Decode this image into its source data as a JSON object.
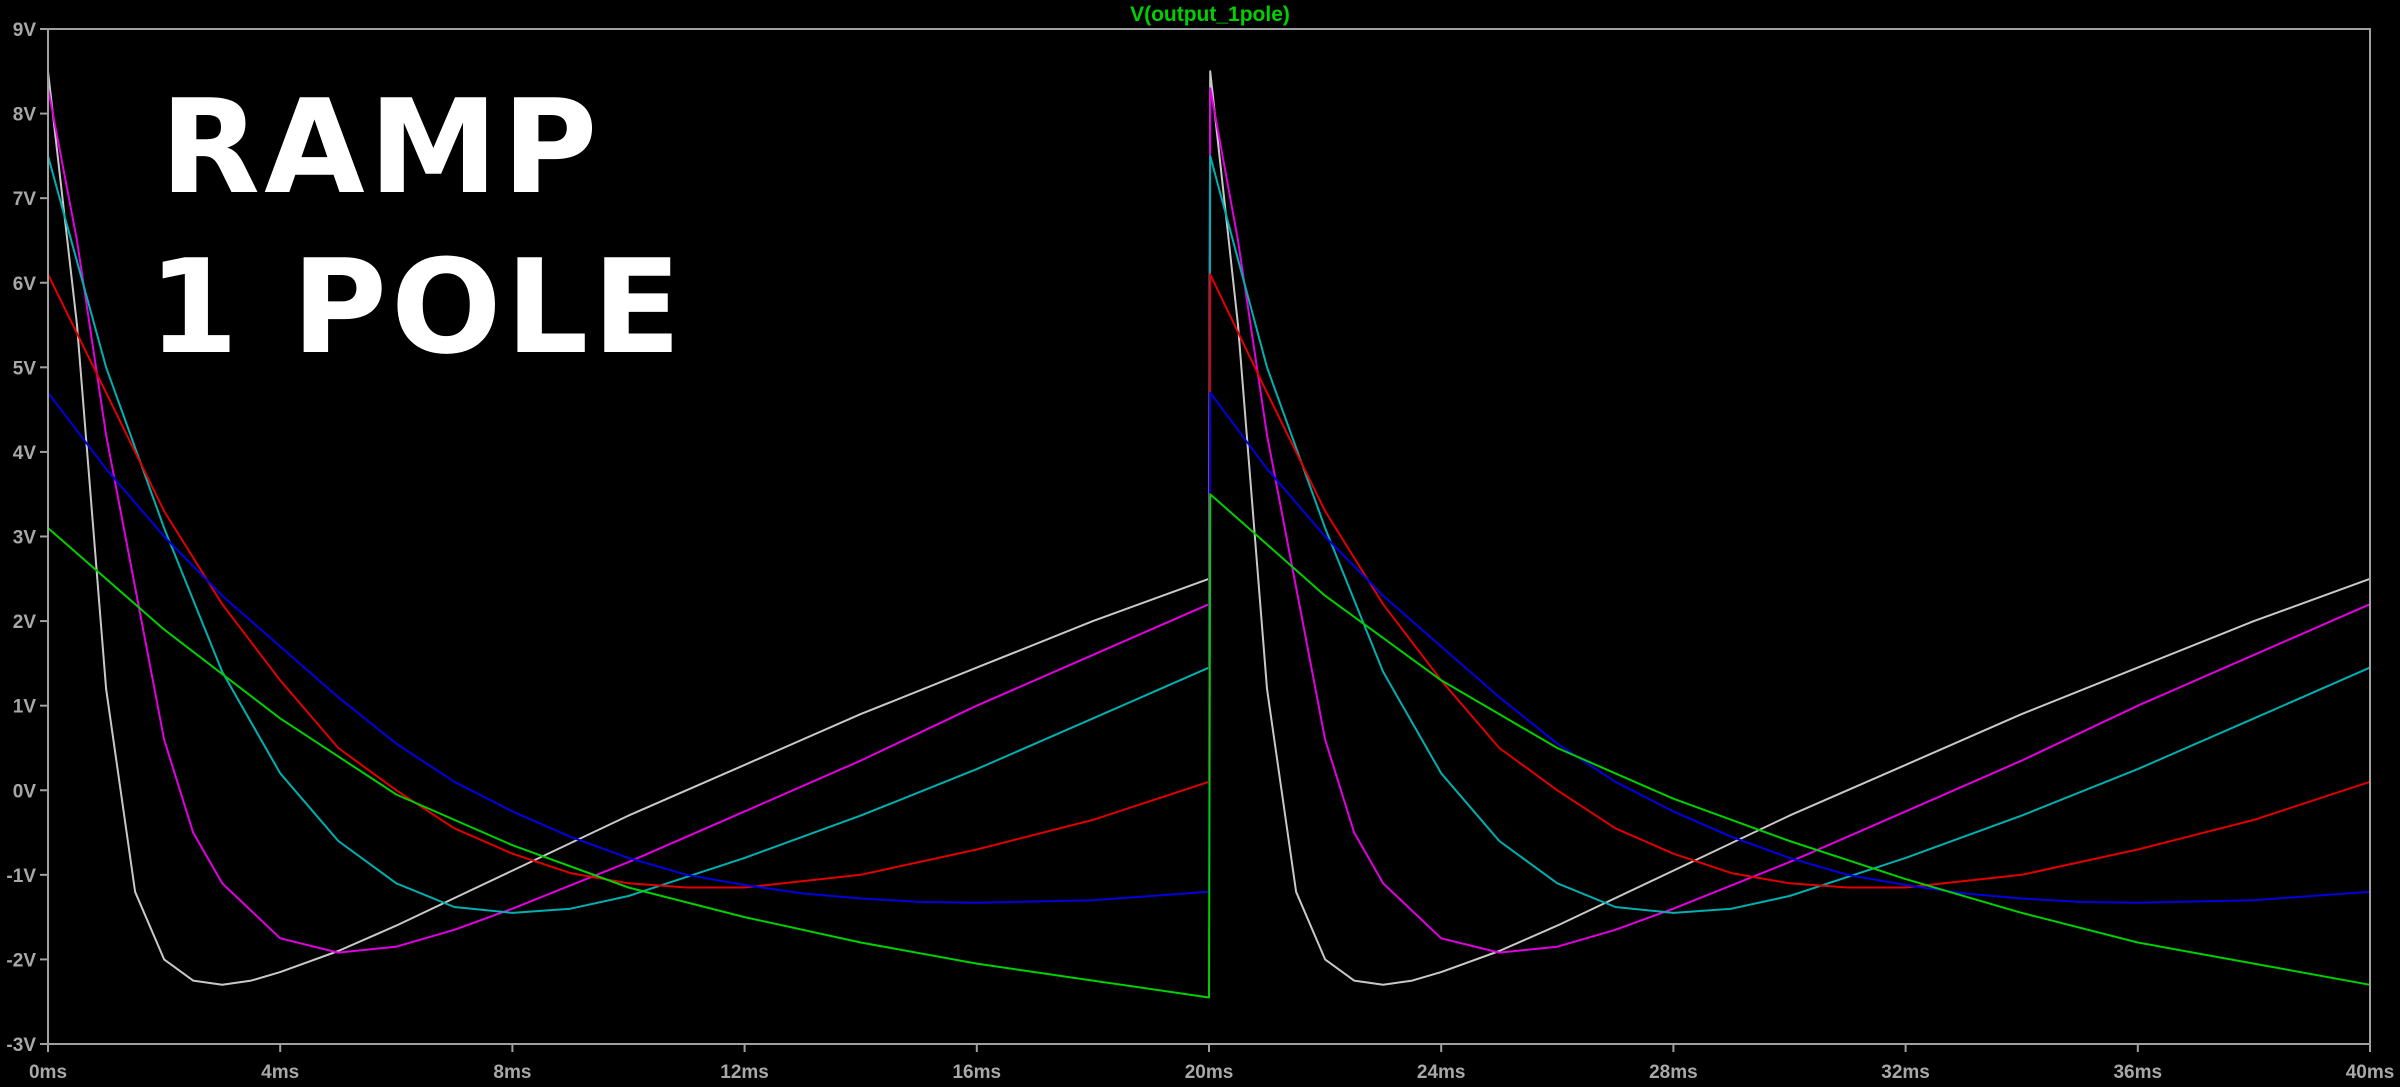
{
  "window": {
    "trace_title": "V(output_1pole)",
    "overlay_line1": "RAMP",
    "overlay_line2": "1 POLE"
  },
  "chart_data": {
    "type": "line",
    "title": "V(output_1pole)",
    "xlabel": "",
    "ylabel": "",
    "xlim": [
      0,
      40
    ],
    "ylim": [
      -3,
      9
    ],
    "x_unit": "ms",
    "y_unit": "V",
    "grid": false,
    "x_ticks": [
      "0ms",
      "4ms",
      "8ms",
      "12ms",
      "16ms",
      "20ms",
      "24ms",
      "28ms",
      "32ms",
      "36ms",
      "40ms"
    ],
    "y_ticks": [
      "-3V",
      "-2V",
      "-1V",
      "0V",
      "1V",
      "2V",
      "3V",
      "4V",
      "5V",
      "6V",
      "7V",
      "8V",
      "9V"
    ],
    "colors": {
      "background": "#000000",
      "axis": "#a0a0a0",
      "title": "#00d000"
    },
    "series": [
      {
        "color": "#c8c8c8",
        "x": [
          0,
          0.5,
          1,
          1.5,
          2,
          2.5,
          3,
          3.5,
          4,
          5,
          6,
          8,
          10,
          12,
          14,
          16,
          18,
          20,
          20.02,
          20.5,
          21,
          21.5,
          22,
          22.5,
          23,
          23.5,
          24,
          25,
          26,
          28,
          30,
          32,
          34,
          36,
          38,
          40
        ],
        "y": [
          8.5,
          5.5,
          1.2,
          -1.2,
          -2.0,
          -2.25,
          -2.3,
          -2.25,
          -2.15,
          -1.9,
          -1.6,
          -0.95,
          -0.3,
          0.3,
          0.9,
          1.45,
          2.0,
          2.5,
          8.5,
          5.5,
          1.2,
          -1.2,
          -2.0,
          -2.25,
          -2.3,
          -2.25,
          -2.15,
          -1.9,
          -1.6,
          -0.95,
          -0.3,
          0.3,
          0.9,
          1.45,
          2.0,
          2.5
        ]
      },
      {
        "color": "#e000e0",
        "x": [
          0,
          0.5,
          1,
          1.5,
          2,
          2.5,
          3,
          4,
          5,
          6,
          7,
          8,
          10,
          12,
          14,
          16,
          18,
          20,
          20.02,
          20.5,
          21,
          21.5,
          22,
          22.5,
          23,
          24,
          25,
          26,
          27,
          28,
          30,
          32,
          34,
          36,
          38,
          40
        ],
        "y": [
          8.3,
          6.5,
          4.2,
          2.4,
          0.6,
          -0.5,
          -1.1,
          -1.75,
          -1.92,
          -1.85,
          -1.65,
          -1.4,
          -0.85,
          -0.25,
          0.35,
          1.0,
          1.6,
          2.2,
          8.3,
          6.5,
          4.2,
          2.4,
          0.6,
          -0.5,
          -1.1,
          -1.75,
          -1.92,
          -1.85,
          -1.65,
          -1.4,
          -0.85,
          -0.25,
          0.35,
          1.0,
          1.6,
          2.2
        ]
      },
      {
        "color": "#00b0b0",
        "x": [
          0,
          1,
          2,
          3,
          4,
          5,
          6,
          7,
          8,
          9,
          10,
          12,
          14,
          16,
          18,
          20,
          20.02,
          21,
          22,
          23,
          24,
          25,
          26,
          27,
          28,
          29,
          30,
          32,
          34,
          36,
          38,
          40
        ],
        "y": [
          7.5,
          5.0,
          3.1,
          1.4,
          0.2,
          -0.6,
          -1.1,
          -1.38,
          -1.45,
          -1.4,
          -1.25,
          -0.8,
          -0.3,
          0.25,
          0.85,
          1.45,
          7.5,
          5.0,
          3.1,
          1.4,
          0.2,
          -0.6,
          -1.1,
          -1.38,
          -1.45,
          -1.4,
          -1.25,
          -0.8,
          -0.3,
          0.25,
          0.85,
          1.45
        ]
      },
      {
        "color": "#e00000",
        "x": [
          0,
          1,
          2,
          3,
          4,
          5,
          6,
          7,
          8,
          9,
          10,
          11,
          12,
          14,
          16,
          18,
          20,
          20.02,
          21,
          22,
          23,
          24,
          25,
          26,
          27,
          28,
          29,
          30,
          31,
          32,
          34,
          36,
          38,
          40
        ],
        "y": [
          6.1,
          4.7,
          3.3,
          2.2,
          1.3,
          0.5,
          0.0,
          -0.45,
          -0.75,
          -0.98,
          -1.1,
          -1.15,
          -1.15,
          -1.0,
          -0.7,
          -0.35,
          0.1,
          6.1,
          4.7,
          3.3,
          2.2,
          1.3,
          0.5,
          0.0,
          -0.45,
          -0.75,
          -0.98,
          -1.1,
          -1.15,
          -1.15,
          -1.0,
          -0.7,
          -0.35,
          0.1
        ]
      },
      {
        "color": "#0000e0",
        "x": [
          0,
          1,
          2,
          3,
          4,
          5,
          6,
          7,
          8,
          9,
          10,
          11,
          12,
          13,
          14,
          15,
          16,
          18,
          20,
          20.02,
          21,
          22,
          23,
          24,
          25,
          26,
          27,
          28,
          29,
          30,
          31,
          32,
          33,
          34,
          35,
          36,
          38,
          40
        ],
        "y": [
          4.7,
          3.8,
          3.0,
          2.3,
          1.7,
          1.1,
          0.55,
          0.1,
          -0.25,
          -0.55,
          -0.8,
          -1.0,
          -1.12,
          -1.22,
          -1.28,
          -1.32,
          -1.33,
          -1.3,
          -1.2,
          4.7,
          3.8,
          3.0,
          2.3,
          1.7,
          1.1,
          0.55,
          0.1,
          -0.25,
          -0.55,
          -0.8,
          -1.0,
          -1.12,
          -1.22,
          -1.28,
          -1.32,
          -1.33,
          -1.3,
          -1.2
        ]
      },
      {
        "color": "#00d000",
        "x": [
          0,
          2,
          4,
          6,
          8,
          10,
          12,
          14,
          16,
          18,
          20,
          20.02,
          22,
          24,
          26,
          28,
          30,
          32,
          34,
          36,
          38,
          40
        ],
        "y": [
          3.1,
          1.9,
          0.85,
          -0.05,
          -0.65,
          -1.15,
          -1.5,
          -1.8,
          -2.05,
          -2.25,
          -2.45,
          3.5,
          2.3,
          1.3,
          0.5,
          -0.1,
          -0.6,
          -1.05,
          -1.45,
          -1.8,
          -2.05,
          -2.3
        ]
      }
    ]
  }
}
